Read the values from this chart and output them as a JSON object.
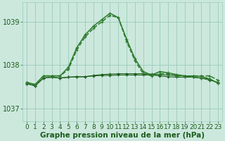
{
  "x": [
    0,
    1,
    2,
    3,
    4,
    5,
    6,
    7,
    8,
    9,
    10,
    11,
    12,
    13,
    14,
    15,
    16,
    17,
    18,
    19,
    20,
    21,
    22,
    23
  ],
  "line_peak1": [
    1037.6,
    1037.55,
    1037.75,
    1037.75,
    1037.75,
    1037.9,
    1038.35,
    1038.65,
    1038.85,
    1039.0,
    1039.15,
    1039.1,
    1038.55,
    1038.1,
    1037.8,
    1037.75,
    1037.8,
    1037.8,
    1037.75,
    1037.75,
    1037.75,
    1037.75,
    1037.75,
    1037.65
  ],
  "line_peak2": [
    1037.6,
    1037.55,
    1037.75,
    1037.75,
    1037.75,
    1037.95,
    1038.4,
    1038.7,
    1038.9,
    1039.05,
    1039.2,
    1039.1,
    1038.6,
    1038.15,
    1037.85,
    1037.77,
    1037.85,
    1037.82,
    1037.78,
    1037.75,
    1037.72,
    1037.7,
    1037.68,
    1037.58
  ],
  "line_flat1": [
    1037.57,
    1037.52,
    1037.7,
    1037.72,
    1037.7,
    1037.72,
    1037.73,
    1037.73,
    1037.75,
    1037.76,
    1037.76,
    1037.77,
    1037.77,
    1037.77,
    1037.77,
    1037.77,
    1037.75,
    1037.73,
    1037.72,
    1037.72,
    1037.72,
    1037.7,
    1037.65,
    1037.6
  ],
  "line_flat2": [
    1037.57,
    1037.52,
    1037.7,
    1037.72,
    1037.7,
    1037.72,
    1037.73,
    1037.73,
    1037.76,
    1037.78,
    1037.79,
    1037.8,
    1037.8,
    1037.8,
    1037.8,
    1037.79,
    1037.78,
    1037.77,
    1037.76,
    1037.75,
    1037.75,
    1037.74,
    1037.68,
    1037.58
  ],
  "bg_color": "#cce8dd",
  "grid_color": "#99ccbb",
  "line_dark": "#1a5c1a",
  "line_mid": "#2d7a2d",
  "ylabel_ticks": [
    1037,
    1038,
    1039
  ],
  "xlabel": "Graphe pression niveau de la mer (hPa)",
  "xlim": [
    -0.5,
    23.5
  ],
  "ylim": [
    1036.7,
    1039.45
  ],
  "xlabel_fontsize": 7.5,
  "tick_fontsize": 6.5
}
